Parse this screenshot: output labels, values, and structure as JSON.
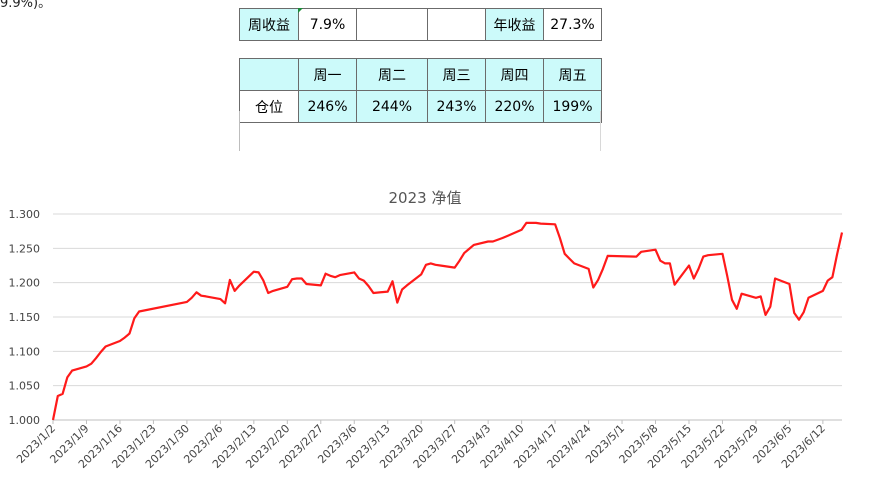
{
  "top_fragment": "9.9%)。",
  "summary": {
    "week_label": "周收益",
    "week_value": "7.9%",
    "year_label": "年收益",
    "year_value": "27.3%"
  },
  "position": {
    "row_label": "仓位",
    "days": [
      "周一",
      "周二",
      "周三",
      "周四",
      "周五"
    ],
    "values": [
      "246%",
      "244%",
      "243%",
      "220%",
      "199%"
    ]
  },
  "colors": {
    "line": "#ff1a1a",
    "header_fill": "#ccfafa",
    "grid": "#d9d9d9"
  },
  "chart_data": {
    "type": "line",
    "title": "2023 净值",
    "ylim": [
      1.0,
      1.3
    ],
    "yticks": [
      "1.000",
      "1.050",
      "1.100",
      "1.150",
      "1.200",
      "1.250",
      "1.300"
    ],
    "xticks": [
      "2023/1/2",
      "2023/1/9",
      "2023/1/16",
      "2023/1/23",
      "2023/1/30",
      "2023/2/6",
      "2023/2/13",
      "2023/2/20",
      "2023/2/27",
      "2023/3/6",
      "2023/3/13",
      "2023/3/20",
      "2023/3/27",
      "2023/4/3",
      "2023/4/10",
      "2023/4/17",
      "2023/4/24",
      "2023/5/1",
      "2023/5/8",
      "2023/5/15",
      "2023/5/22",
      "2023/5/29",
      "2023/6/5",
      "2023/6/12"
    ],
    "grid": true,
    "legend": "none",
    "series": [
      {
        "x": [
          "2023-01-02",
          "2023-01-03",
          "2023-01-04",
          "2023-01-05",
          "2023-01-06",
          "2023-01-09",
          "2023-01-10",
          "2023-01-11",
          "2023-01-12",
          "2023-01-13",
          "2023-01-16",
          "2023-01-17",
          "2023-01-18",
          "2023-01-19",
          "2023-01-20",
          "2023-01-30",
          "2023-01-31",
          "2023-02-01",
          "2023-02-02",
          "2023-02-03",
          "2023-02-06",
          "2023-02-07",
          "2023-02-08",
          "2023-02-09",
          "2023-02-10",
          "2023-02-13",
          "2023-02-14",
          "2023-02-15",
          "2023-02-16",
          "2023-02-17",
          "2023-02-20",
          "2023-02-21",
          "2023-02-22",
          "2023-02-23",
          "2023-02-24",
          "2023-02-27",
          "2023-02-28",
          "2023-03-01",
          "2023-03-02",
          "2023-03-03",
          "2023-03-06",
          "2023-03-07",
          "2023-03-08",
          "2023-03-09",
          "2023-03-10",
          "2023-03-13",
          "2023-03-14",
          "2023-03-15",
          "2023-03-16",
          "2023-03-17",
          "2023-03-20",
          "2023-03-21",
          "2023-03-22",
          "2023-03-23",
          "2023-03-24",
          "2023-03-27",
          "2023-03-28",
          "2023-03-29",
          "2023-03-30",
          "2023-03-31",
          "2023-04-03",
          "2023-04-04",
          "2023-04-06",
          "2023-04-07",
          "2023-04-10",
          "2023-04-11",
          "2023-04-12",
          "2023-04-13",
          "2023-04-14",
          "2023-04-17",
          "2023-04-18",
          "2023-04-19",
          "2023-04-20",
          "2023-04-21",
          "2023-04-24",
          "2023-04-25",
          "2023-04-26",
          "2023-04-27",
          "2023-04-28",
          "2023-05-04",
          "2023-05-05",
          "2023-05-08",
          "2023-05-09",
          "2023-05-10",
          "2023-05-11",
          "2023-05-12",
          "2023-05-15",
          "2023-05-16",
          "2023-05-17",
          "2023-05-18",
          "2023-05-19",
          "2023-05-22",
          "2023-05-23",
          "2023-05-24",
          "2023-05-25",
          "2023-05-26",
          "2023-05-29",
          "2023-05-30",
          "2023-05-31",
          "2023-06-01",
          "2023-06-02",
          "2023-06-05",
          "2023-06-06",
          "2023-06-07",
          "2023-06-08",
          "2023-06-09",
          "2023-06-12",
          "2023-06-13",
          "2023-06-14",
          "2023-06-15",
          "2023-06-16"
        ],
        "y": [
          1.0,
          1.035,
          1.038,
          1.062,
          1.072,
          1.078,
          1.082,
          1.09,
          1.099,
          1.107,
          1.115,
          1.12,
          1.126,
          1.148,
          1.158,
          1.172,
          1.178,
          1.186,
          1.181,
          1.18,
          1.176,
          1.17,
          1.204,
          1.188,
          1.196,
          1.216,
          1.215,
          1.203,
          1.185,
          1.188,
          1.194,
          1.205,
          1.206,
          1.206,
          1.198,
          1.196,
          1.213,
          1.21,
          1.208,
          1.211,
          1.215,
          1.206,
          1.203,
          1.195,
          1.185,
          1.187,
          1.202,
          1.171,
          1.19,
          1.196,
          1.212,
          1.226,
          1.228,
          1.226,
          1.225,
          1.222,
          1.232,
          1.243,
          1.249,
          1.255,
          1.26,
          1.26,
          1.265,
          1.268,
          1.277,
          1.287,
          1.287,
          1.287,
          1.286,
          1.285,
          1.265,
          1.242,
          1.235,
          1.228,
          1.22,
          1.193,
          1.204,
          1.22,
          1.239,
          1.238,
          1.245,
          1.248,
          1.232,
          1.228,
          1.228,
          1.197,
          1.225,
          1.206,
          1.22,
          1.238,
          1.24,
          1.242,
          1.21,
          1.175,
          1.162,
          1.184,
          1.178,
          1.18,
          1.153,
          1.165,
          1.206,
          1.198,
          1.156,
          1.146,
          1.157,
          1.178,
          1.188,
          1.203,
          1.208,
          1.242,
          1.273
        ]
      }
    ]
  }
}
